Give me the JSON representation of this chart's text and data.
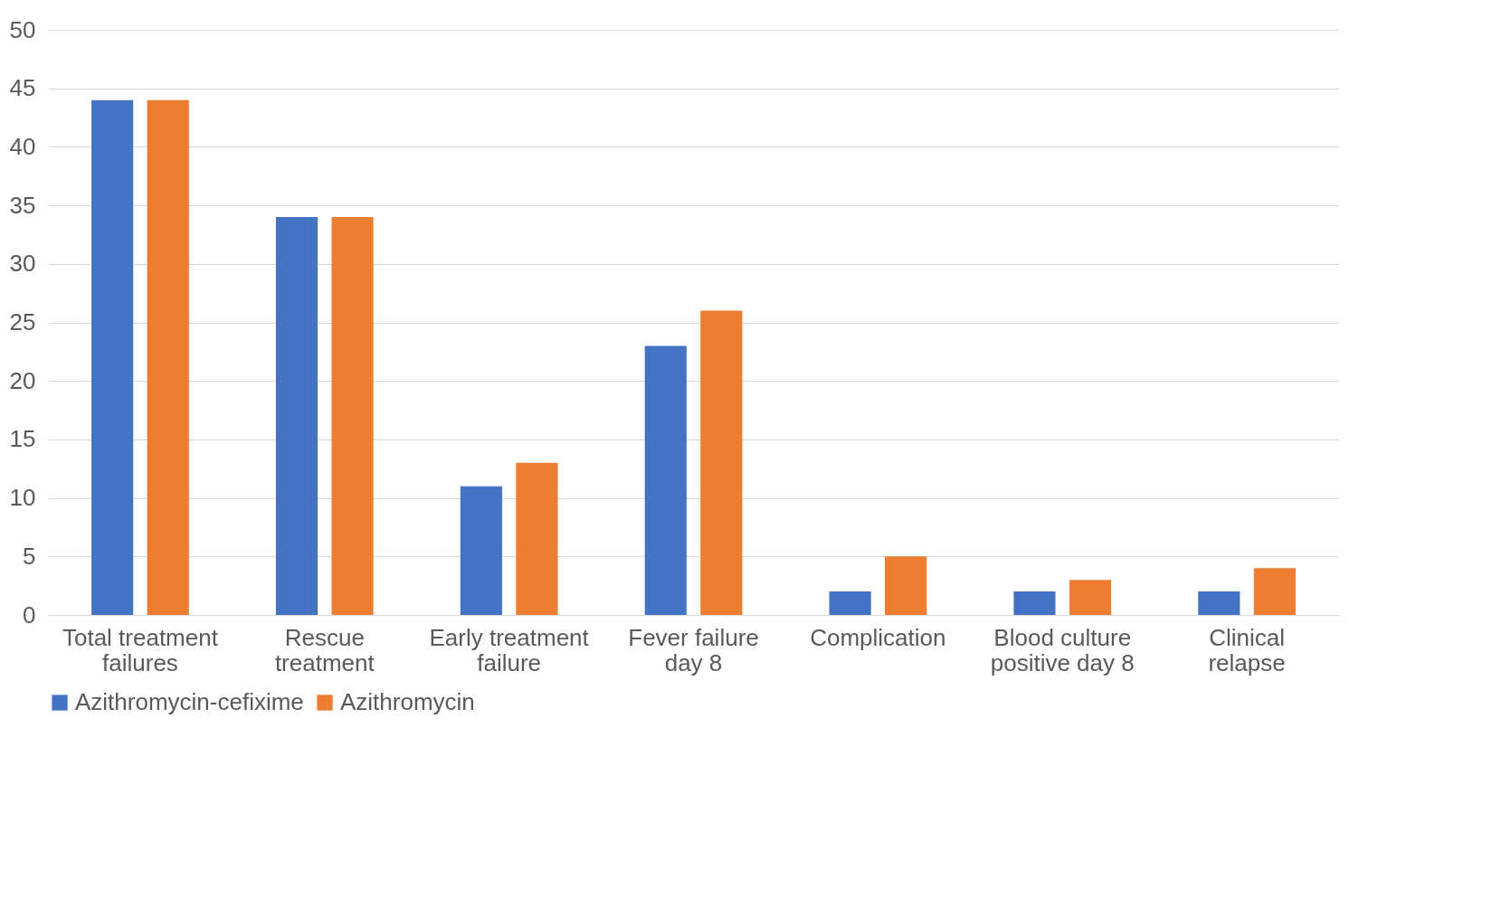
{
  "chart_data": {
    "type": "bar",
    "categories": [
      "Total treatment failures",
      "Rescue treatment",
      "Early treatment failure",
      "Fever failure day 8",
      "Complication",
      "Blood culture positive day 8",
      "Clinical relapse"
    ],
    "series": [
      {
        "name": "Azithromycin-cefixime",
        "color": "#4472c4",
        "values": [
          44,
          34,
          11,
          23,
          2,
          2,
          2
        ]
      },
      {
        "name": "Azithromycin",
        "color": "#ed7d31",
        "values": [
          44,
          34,
          13,
          26,
          5,
          3,
          4
        ]
      }
    ],
    "ylim": [
      0,
      50
    ],
    "yticks": [
      0,
      5,
      10,
      15,
      20,
      25,
      30,
      35,
      40,
      45,
      50
    ],
    "grid": "y",
    "legend": "bottom"
  }
}
